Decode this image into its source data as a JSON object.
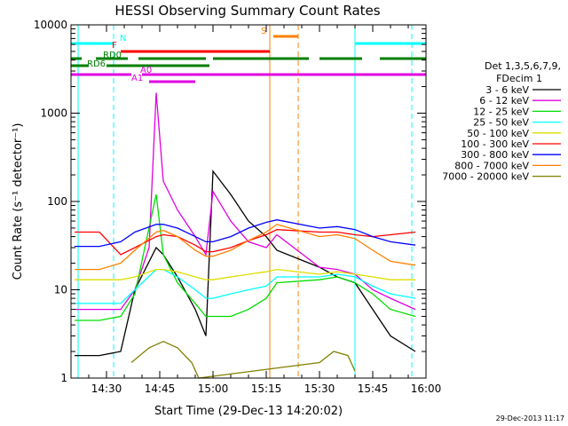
{
  "chart_data": {
    "type": "line",
    "title": "HESSI Observing Summary Count Rates",
    "xlabel": "Start Time (29-Dec-13 14:20:02)",
    "ylabel": "Count Rate (s⁻¹ detector⁻¹)",
    "timestamp": "29-Dec-2013 11:17",
    "x_unit": "UT time on 29-Dec-2013",
    "xlim": [
      "14:20",
      "16:00"
    ],
    "ylim": [
      1,
      10000
    ],
    "yscale": "log",
    "xticks": [
      "14:30",
      "14:45",
      "15:00",
      "15:15",
      "15:30",
      "15:45",
      "16:00"
    ],
    "yticks": [
      "1",
      "10",
      "100",
      "1000",
      "10000"
    ],
    "grid": false,
    "legend_position": "right",
    "legend_header": [
      "Det 1,3,5,6,7,9,",
      "FDecim 1"
    ],
    "series": [
      {
        "name": "3 - 6 keV",
        "color": "#000000",
        "x": [
          "14:21",
          "14:28",
          "14:34",
          "14:38",
          "14:44",
          "14:46",
          "14:50",
          "14:55",
          "14:58",
          "15:00",
          "15:05",
          "15:10",
          "15:15",
          "15:18",
          "15:30",
          "15:35",
          "15:40",
          "15:45",
          "15:50",
          "15:57"
        ],
        "y": [
          1.8,
          1.8,
          2,
          10,
          30,
          25,
          14,
          6,
          3,
          220,
          120,
          60,
          40,
          28,
          18,
          14,
          12,
          6,
          3,
          2
        ]
      },
      {
        "name": "6 - 12 keV",
        "color": "#e000e0",
        "x": [
          "14:21",
          "14:28",
          "14:34",
          "14:38",
          "14:42",
          "14:44",
          "14:46",
          "14:50",
          "14:55",
          "14:58",
          "15:00",
          "15:05",
          "15:10",
          "15:15",
          "15:18",
          "15:30",
          "15:35",
          "15:40",
          "15:45",
          "15:50",
          "15:57"
        ],
        "y": [
          6,
          6,
          6,
          10,
          30,
          1700,
          170,
          80,
          40,
          25,
          130,
          60,
          35,
          30,
          42,
          18,
          17,
          15,
          10,
          8,
          6
        ]
      },
      {
        "name": "12 - 25 keV",
        "color": "#00dd00",
        "x": [
          "14:21",
          "14:28",
          "14:34",
          "14:38",
          "14:44",
          "14:46",
          "14:50",
          "14:55",
          "14:58",
          "15:00",
          "15:05",
          "15:10",
          "15:15",
          "15:18",
          "15:30",
          "15:35",
          "15:40",
          "15:45",
          "15:50",
          "15:57"
        ],
        "y": [
          4.5,
          4.5,
          5,
          9,
          120,
          25,
          12,
          7,
          5,
          5,
          5,
          6,
          8,
          12,
          13,
          14,
          12,
          9,
          6,
          5
        ]
      },
      {
        "name": "25 - 50 keV",
        "color": "#00ffff",
        "x": [
          "14:21",
          "14:28",
          "14:34",
          "14:38",
          "14:44",
          "14:46",
          "14:50",
          "14:55",
          "14:58",
          "15:00",
          "15:05",
          "15:10",
          "15:15",
          "15:18",
          "15:30",
          "15:35",
          "15:40",
          "15:45",
          "15:50",
          "15:57"
        ],
        "y": [
          7,
          7,
          7,
          10,
          17,
          17,
          14,
          10,
          8,
          8,
          9,
          10,
          11,
          14,
          14,
          15,
          14,
          11,
          9,
          8
        ]
      },
      {
        "name": "50 - 100 keV",
        "color": "#dddd00",
        "x": [
          "14:21",
          "14:28",
          "14:34",
          "14:38",
          "14:44",
          "14:46",
          "14:50",
          "14:55",
          "14:58",
          "15:00",
          "15:05",
          "15:10",
          "15:15",
          "15:18",
          "15:30",
          "15:35",
          "15:40",
          "15:45",
          "15:50",
          "15:57"
        ],
        "y": [
          13,
          13,
          13,
          14,
          17,
          17,
          16,
          14,
          13,
          13,
          14,
          15,
          16,
          17,
          15,
          16,
          15,
          14,
          13,
          13
        ]
      },
      {
        "name": "100 - 300 keV",
        "color": "#ff0000",
        "x": [
          "14:21",
          "14:28",
          "14:34",
          "14:38",
          "14:44",
          "14:46",
          "14:50",
          "14:55",
          "14:58",
          "15:00",
          "15:05",
          "15:10",
          "15:15",
          "15:18",
          "15:30",
          "15:35",
          "15:40",
          "15:45",
          "15:50",
          "15:57"
        ],
        "y": [
          45,
          45,
          25,
          30,
          40,
          42,
          40,
          32,
          27,
          27,
          30,
          36,
          42,
          48,
          45,
          45,
          42,
          40,
          42,
          45
        ]
      },
      {
        "name": "300 - 800 keV",
        "color": "#0000ff",
        "x": [
          "14:21",
          "14:28",
          "14:34",
          "14:38",
          "14:44",
          "14:46",
          "14:50",
          "14:55",
          "14:58",
          "15:00",
          "15:05",
          "15:10",
          "15:15",
          "15:18",
          "15:30",
          "15:35",
          "15:40",
          "15:45",
          "15:50",
          "15:57"
        ],
        "y": [
          31,
          31,
          35,
          45,
          55,
          55,
          50,
          40,
          35,
          35,
          40,
          50,
          58,
          62,
          50,
          52,
          48,
          40,
          35,
          32
        ]
      },
      {
        "name": "800 - 7000 keV",
        "color": "#ff8000",
        "x": [
          "14:21",
          "14:28",
          "14:34",
          "14:38",
          "14:44",
          "14:46",
          "14:50",
          "14:55",
          "14:58",
          "15:00",
          "15:05",
          "15:10",
          "15:15",
          "15:18",
          "15:30",
          "15:35",
          "15:40",
          "15:45",
          "15:50",
          "15:57"
        ],
        "y": [
          17,
          17,
          20,
          28,
          45,
          47,
          40,
          28,
          24,
          24,
          28,
          36,
          45,
          55,
          40,
          42,
          38,
          28,
          21,
          19
        ]
      },
      {
        "name": "7000 - 20000 keV",
        "color": "#808000",
        "x": [
          "14:37",
          "14:42",
          "14:46",
          "14:50",
          "14:54",
          "14:56",
          "15:30",
          "15:34",
          "15:38",
          "15:40"
        ],
        "y": [
          1.5,
          2.2,
          2.6,
          2.2,
          1.5,
          1.0,
          1.5,
          2.0,
          1.8,
          1.2
        ]
      }
    ],
    "flag_bars": [
      {
        "label": "N",
        "color": "#00ffff",
        "segments": [
          [
            "14:20",
            "14:32"
          ],
          [
            "15:40",
            "16:00"
          ]
        ]
      },
      {
        "label": "F",
        "color": "#ff0000",
        "segments": [
          [
            "14:34",
            "15:16"
          ]
        ]
      },
      {
        "label": "S",
        "color": "#ff8000",
        "segments": [
          [
            "15:17",
            "15:24"
          ]
        ]
      },
      {
        "label": "RD0",
        "color": "#007f00",
        "segments": [
          [
            "14:20",
            "14:23"
          ],
          [
            "14:27",
            "14:36"
          ],
          [
            "14:39",
            "14:58"
          ],
          [
            "15:00",
            "15:27"
          ],
          [
            "15:30",
            "15:42"
          ],
          [
            "15:47",
            "16:00"
          ]
        ]
      },
      {
        "label": "RD6",
        "color": "#007f00",
        "segments": [
          [
            "14:20",
            "14:25"
          ],
          [
            "14:30",
            "14:59"
          ]
        ]
      },
      {
        "label": "A0",
        "color": "#e000e0",
        "segments": [
          [
            "14:20",
            "14:37"
          ],
          [
            "14:40",
            "16:00"
          ]
        ]
      },
      {
        "label": "A1",
        "color": "#e000e0",
        "segments": [
          [
            "14:42",
            "14:55"
          ]
        ]
      }
    ],
    "vertical_lines": [
      {
        "x": "14:32",
        "color": "#00ffff",
        "style": "dashed"
      },
      {
        "x": "14:22",
        "color": "#00ffff",
        "style": "solid"
      },
      {
        "x": "15:40",
        "color": "#00ffff",
        "style": "solid"
      },
      {
        "x": "15:56",
        "color": "#00ffff",
        "style": "dashed"
      },
      {
        "x": "15:16",
        "color": "#ff8000",
        "style": "solid"
      },
      {
        "x": "15:24",
        "color": "#ff8000",
        "style": "dashed"
      }
    ]
  }
}
